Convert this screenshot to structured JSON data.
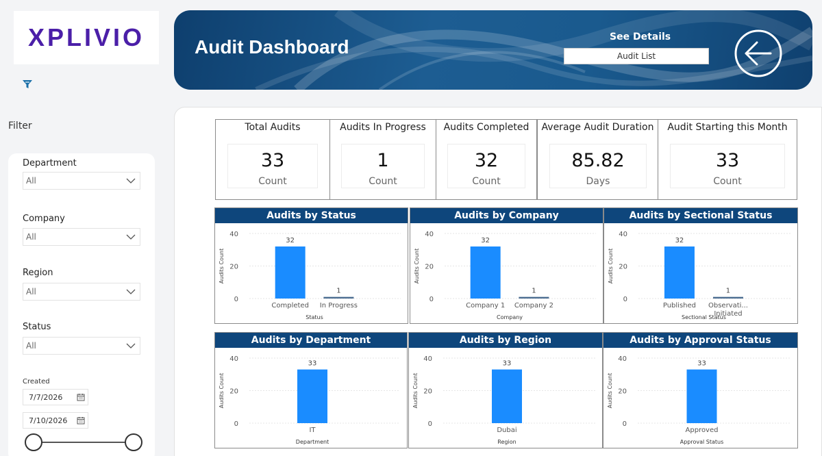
{
  "brand": {
    "logo_text": "XPLIVIO"
  },
  "sidebar": {
    "filter_title": "Filter",
    "filters": [
      {
        "label": "Department",
        "value": "All"
      },
      {
        "label": "Company",
        "value": "All"
      },
      {
        "label": "Region",
        "value": "All"
      },
      {
        "label": "Status",
        "value": "All"
      }
    ],
    "created_label": "Created",
    "date_from": "7/7/2026",
    "date_to": "7/10/2026"
  },
  "header": {
    "title": "Audit Dashboard",
    "see_details": "See Details",
    "audit_list_label": "Audit List"
  },
  "kpis": [
    {
      "title": "Total Audits",
      "value": "33",
      "unit": "Count"
    },
    {
      "title": "Audits In Progress",
      "value": "1",
      "unit": "Count"
    },
    {
      "title": "Audits Completed",
      "value": "32",
      "unit": "Count"
    },
    {
      "title": "Average Audit Duration",
      "value": "85.82",
      "unit": "Days"
    },
    {
      "title": "Audit Starting this Month",
      "value": "33",
      "unit": "Count"
    }
  ],
  "colors": {
    "bar": "#1a8cff",
    "header_bar": "#0e467c"
  },
  "chart_data": [
    {
      "type": "bar",
      "title": "Audits by Status",
      "xlabel": "Status",
      "ylabel": "Audits Count",
      "ylim": [
        0,
        40
      ],
      "yticks": [
        0,
        20,
        40
      ],
      "categories": [
        "Completed",
        "In Progress"
      ],
      "values": [
        32,
        1
      ]
    },
    {
      "type": "bar",
      "title": "Audits by Company",
      "xlabel": "Company",
      "ylabel": "Audits Count",
      "ylim": [
        0,
        40
      ],
      "yticks": [
        0,
        20,
        40
      ],
      "categories": [
        "Company 1",
        "Company 2"
      ],
      "values": [
        32,
        1
      ]
    },
    {
      "type": "bar",
      "title": "Audits by Sectional Status",
      "xlabel": "Sectional Status",
      "ylabel": "Audits Count",
      "ylim": [
        0,
        40
      ],
      "yticks": [
        0,
        20,
        40
      ],
      "categories": [
        "Published",
        "Observati... Initiated"
      ],
      "values": [
        32,
        1
      ]
    },
    {
      "type": "bar",
      "title": "Audits by Department",
      "xlabel": "Department",
      "ylabel": "Audits Count",
      "ylim": [
        0,
        40
      ],
      "yticks": [
        0,
        20,
        40
      ],
      "categories": [
        "IT"
      ],
      "values": [
        33
      ]
    },
    {
      "type": "bar",
      "title": "Audits by Region",
      "xlabel": "Region",
      "ylabel": "Audits Count",
      "ylim": [
        0,
        40
      ],
      "yticks": [
        0,
        20,
        40
      ],
      "categories": [
        "Dubai"
      ],
      "values": [
        33
      ]
    },
    {
      "type": "bar",
      "title": "Audits by Approval Status",
      "xlabel": "Approval Status",
      "ylabel": "Audits Count",
      "ylim": [
        0,
        40
      ],
      "yticks": [
        0,
        20,
        40
      ],
      "categories": [
        "Approved"
      ],
      "values": [
        33
      ]
    }
  ]
}
